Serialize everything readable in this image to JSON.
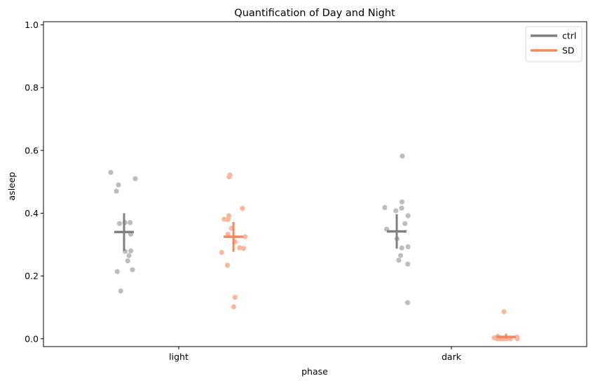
{
  "chart_data": {
    "type": "scatter",
    "title": "Quantification of Day and Night",
    "xlabel": "phase",
    "ylabel": "asleep",
    "categories": [
      "light",
      "dark"
    ],
    "ylim": [
      -0.025,
      1.01
    ],
    "yticks": [
      0.0,
      0.2,
      0.4,
      0.6,
      0.8,
      1.0
    ],
    "ytick_labels": [
      "0.0",
      "0.2",
      "0.4",
      "0.6",
      "0.8",
      "1.0"
    ],
    "grid": false,
    "legend_position": "top-right",
    "series": [
      {
        "name": "ctrl",
        "color": "#808080",
        "point_color": "#bdbdbd",
        "groups": [
          {
            "category": "light",
            "mean": 0.34,
            "error": [
              0.28,
              0.4
            ],
            "points": [
              0.53,
              0.51,
              0.49,
              0.47,
              0.37,
              0.37,
              0.367,
              0.333,
              0.28,
              0.278,
              0.265,
              0.248,
              0.22,
              0.214,
              0.152
            ]
          },
          {
            "category": "dark",
            "mean": 0.342,
            "error": [
              0.287,
              0.397
            ],
            "points": [
              0.582,
              0.436,
              0.418,
              0.416,
              0.408,
              0.392,
              0.367,
              0.349,
              0.318,
              0.293,
              0.289,
              0.265,
              0.25,
              0.238,
              0.115
            ]
          }
        ]
      },
      {
        "name": "SD",
        "color": "#f4895f",
        "point_color": "#fbb69c",
        "groups": [
          {
            "category": "light",
            "mean": 0.325,
            "error": [
              0.277,
              0.372
            ],
            "points": [
              0.522,
              0.516,
              0.415,
              0.392,
              0.381,
              0.38,
              0.352,
              0.333,
              0.325,
              0.309,
              0.29,
              0.288,
              0.275,
              0.234,
              0.132,
              0.102
            ]
          },
          {
            "category": "dark",
            "mean": 0.006,
            "error": [
              0.0,
              0.016
            ],
            "points": [
              0.086,
              0.008,
              0.005,
              0.003,
              0.002,
              0.001,
              0.0,
              0.0,
              0.0,
              0.0,
              0.0,
              0.0,
              0.0,
              0.0
            ]
          }
        ]
      }
    ]
  }
}
